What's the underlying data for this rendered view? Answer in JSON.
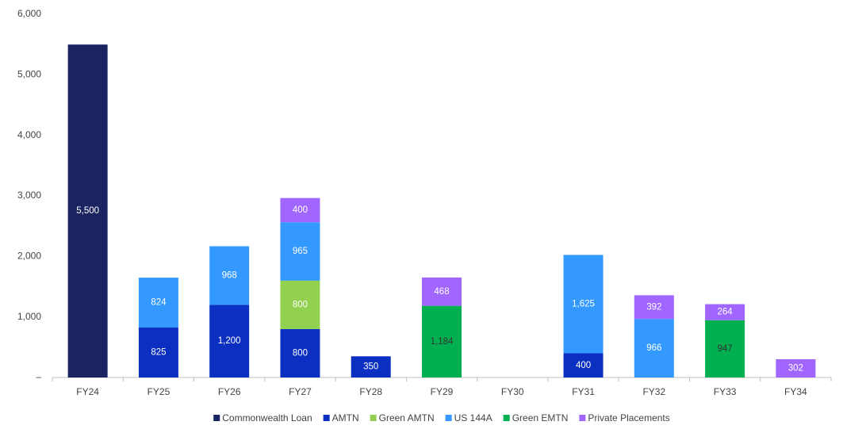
{
  "chart_data": {
    "type": "stacked_bar",
    "categories": [
      "FY24",
      "FY25",
      "FY26",
      "FY27",
      "FY28",
      "FY29",
      "FY30",
      "FY31",
      "FY32",
      "FY33",
      "FY34"
    ],
    "series": [
      {
        "name": "Commonwealth Loan",
        "color": "#1b2461",
        "label_color": "#ffffff",
        "values": [
          5500,
          null,
          null,
          null,
          null,
          null,
          null,
          null,
          null,
          null,
          null
        ],
        "value_labels": [
          "5,500",
          null,
          null,
          null,
          null,
          null,
          null,
          null,
          null,
          null,
          null
        ]
      },
      {
        "name": "AMTN",
        "color": "#0b2fc0",
        "label_color": "#ffffff",
        "values": [
          null,
          825,
          1200,
          800,
          350,
          null,
          null,
          400,
          null,
          null,
          null
        ],
        "value_labels": [
          null,
          "825",
          "1,200",
          "800",
          "350",
          null,
          null,
          "400",
          null,
          null,
          null
        ]
      },
      {
        "name": "Green AMTN",
        "color": "#92d050",
        "label_color": "#ffffff",
        "values": [
          null,
          null,
          null,
          800,
          null,
          null,
          null,
          null,
          null,
          null,
          null
        ]
      },
      {
        "name": "US 144A",
        "color": "#3399ff",
        "label_color": "#ffffff",
        "values": [
          null,
          824,
          968,
          965,
          null,
          null,
          null,
          1625,
          966,
          null,
          null
        ],
        "value_labels": [
          null,
          "824",
          "968",
          "965",
          null,
          null,
          null,
          "1,625",
          "966",
          null,
          null
        ]
      },
      {
        "name": "Green EMTN",
        "color": "#00b050",
        "label_color": "#333333",
        "values": [
          null,
          null,
          null,
          null,
          null,
          1184,
          null,
          null,
          null,
          947,
          null
        ],
        "value_labels": [
          null,
          null,
          null,
          null,
          null,
          "1,184",
          null,
          null,
          null,
          "947",
          null
        ]
      },
      {
        "name": "Private Placements",
        "color": "#a066ff",
        "label_color": "#ffffff",
        "values": [
          null,
          null,
          null,
          400,
          null,
          468,
          null,
          null,
          392,
          264,
          302
        ]
      }
    ],
    "ylim": [
      0,
      6000
    ],
    "yticks": [
      {
        "value": 0,
        "label": "–"
      },
      {
        "value": 1000,
        "label": "1,000"
      },
      {
        "value": 2000,
        "label": "2,000"
      },
      {
        "value": 3000,
        "label": "3,000"
      },
      {
        "value": 4000,
        "label": "4,000"
      },
      {
        "value": 5000,
        "label": "5,000"
      },
      {
        "value": 6000,
        "label": "6,000"
      }
    ],
    "grid": false,
    "legend": "bottom"
  }
}
